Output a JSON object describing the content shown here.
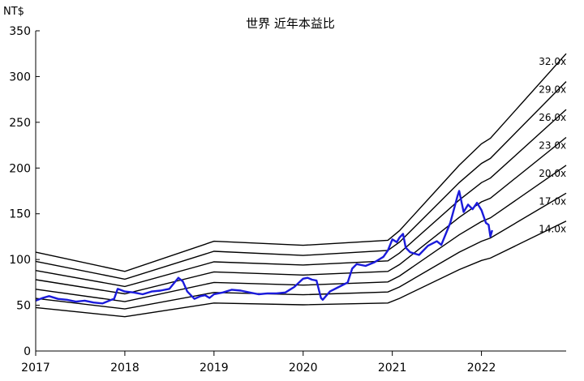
{
  "chart_data": {
    "type": "line",
    "title": "世界 近年本益比",
    "ylabel": "NT$",
    "xlabel": "",
    "ylim": [
      0,
      350
    ],
    "xlim": [
      2017.0,
      2022.95
    ],
    "y_ticks": [
      "0",
      "50",
      "100",
      "150",
      "200",
      "250",
      "300",
      "350"
    ],
    "x_ticks": [
      "2017",
      "2018",
      "2019",
      "2020",
      "2021",
      "2022"
    ],
    "grid": false,
    "eps_anchor_x": [
      2017.0,
      2018.0,
      2019.0,
      2020.0,
      2020.95,
      2021.08,
      2021.75,
      2022.0,
      2022.1,
      2022.95
    ],
    "bands": [
      {
        "label": "14.0x",
        "values": [
          47.5,
          37.5,
          52.5,
          50.5,
          52.5,
          57.5,
          89,
          99,
          101.5,
          142
        ]
      },
      {
        "label": "17.0x",
        "values": [
          57.5,
          46,
          64,
          61.5,
          64.5,
          70,
          108,
          120,
          123.5,
          172.5
        ]
      },
      {
        "label": "20.0x",
        "values": [
          67.5,
          54,
          75,
          72,
          75.5,
          82,
          127,
          141.5,
          145.5,
          203
        ]
      },
      {
        "label": "23.0x",
        "values": [
          78,
          62.5,
          86.5,
          83,
          87,
          94.5,
          146,
          163,
          167,
          233.5
        ]
      },
      {
        "label": "26.0x",
        "values": [
          88,
          70.5,
          97.5,
          94,
          98.5,
          107,
          165,
          184,
          189,
          264
        ]
      },
      {
        "label": "29.0x",
        "values": [
          98,
          78.5,
          109,
          104.5,
          110,
          119,
          184,
          205,
          210.5,
          294.5
        ]
      },
      {
        "label": "32.0x",
        "values": [
          108,
          87,
          120,
          115.5,
          121,
          131.5,
          203,
          226.5,
          232.5,
          325
        ]
      }
    ],
    "series": [
      {
        "x": [
          2017.0,
          2017.08,
          2017.15,
          2017.25,
          2017.35,
          2017.45,
          2017.55,
          2017.65,
          2017.75,
          2017.85,
          2017.88,
          2017.92,
          2018.0,
          2018.1,
          2018.2,
          2018.3,
          2018.4,
          2018.5,
          2018.6,
          2018.65,
          2018.7,
          2018.78,
          2018.85,
          2018.9,
          2018.95,
          2019.0,
          2019.1,
          2019.2,
          2019.3,
          2019.4,
          2019.5,
          2019.6,
          2019.7,
          2019.8,
          2019.9,
          2020.0,
          2020.05,
          2020.1,
          2020.15,
          2020.2,
          2020.22,
          2020.3,
          2020.4,
          2020.5,
          2020.55,
          2020.6,
          2020.7,
          2020.8,
          2020.9,
          2020.95,
          2021.0,
          2021.05,
          2021.08,
          2021.12,
          2021.15,
          2021.2,
          2021.3,
          2021.4,
          2021.5,
          2021.55,
          2021.6,
          2021.65,
          2021.7,
          2021.73,
          2021.75,
          2021.8,
          2021.85,
          2021.9,
          2021.95,
          2022.0,
          2022.05,
          2022.08,
          2022.1,
          2022.12
        ],
        "y": [
          55,
          58,
          60,
          57,
          56,
          54,
          55,
          53,
          52,
          56,
          57,
          68,
          65,
          64,
          62,
          65,
          66,
          68,
          80,
          76,
          65,
          57,
          60,
          61,
          58,
          62,
          64,
          67,
          66,
          64,
          62,
          63,
          63,
          64,
          70,
          79,
          80,
          78,
          77,
          58,
          56,
          65,
          70,
          75,
          90,
          95,
          93,
          97,
          103,
          110,
          122,
          119,
          124,
          128,
          113,
          108,
          105,
          115,
          120,
          116,
          128,
          140,
          158,
          169,
          175,
          152,
          160,
          155,
          162,
          154,
          140,
          138,
          125,
          132
        ]
      }
    ]
  }
}
